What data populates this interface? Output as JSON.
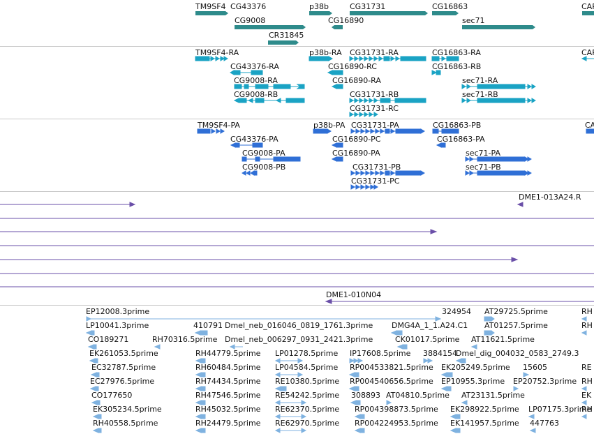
{
  "colors": {
    "gene": "#2e8b8b",
    "transcript": "#1aa3c4",
    "cds": "#2f6fd6",
    "bac": "#6a4fa8",
    "est": "#7fb2e0",
    "separator": "#c8c8c8"
  },
  "gene_track": {
    "genes": [
      "TM9SF4",
      "CG43376",
      "CG9008",
      "CR31845",
      "p38b",
      "CG16890",
      "CG31731",
      "CG16863",
      "sec71",
      "CAP"
    ]
  },
  "transcript_track": {
    "transcripts": [
      "TM9SF4-RA",
      "CG43376-RA",
      "CG9008-RA",
      "CG9008-RB",
      "p38b-RA",
      "CG16890-RC",
      "CG16890-RA",
      "CG31731-RA",
      "CG31731-RB",
      "CG31731-RC",
      "CG16863-RA",
      "CG16863-RB",
      "sec71-RA",
      "sec71-RB",
      "CAP"
    ]
  },
  "protein_track": {
    "proteins": [
      "TM9SF4-PA",
      "CG43376-PA",
      "CG9008-PA",
      "CG9008-PB",
      "p38b-PA",
      "CG16890-PC",
      "CG16890-PA",
      "CG31731-PA",
      "CG31731-PB",
      "CG31731-PC",
      "CG16863-PB",
      "CG16863-PA",
      "sec71-PA",
      "sec71-PB",
      "CA"
    ]
  },
  "bac_track": {
    "labels": [
      "DME1-013A24.R",
      "DME1-010N04"
    ]
  },
  "est_track": {
    "labels": [
      "EP12008.3prime",
      "324954",
      "AT29725.5prime",
      "RH",
      "LP10041.3prime",
      "410791",
      "Dmel_neb_016046_0819_1761.3prime",
      "DMG4A_1_1.A24.C1",
      "AT01257.5prime",
      "RH",
      "CO189271",
      "RH70316.5prime",
      "Dmel_neb_006297_0931_2421.3prime",
      "CK01017.5prime",
      "AT11621.5prime",
      "EK261053.5prime",
      "RH44779.5prime",
      "LP01278.5prime",
      "IP17608.5prime",
      "3884154",
      "Dmel_dig_004032_0583_2749.3",
      "EC32787.5prime",
      "RH60484.5prime",
      "LP04584.5prime",
      "RP004533821.5prime",
      "EK205249.5prime",
      "15605",
      "RE",
      "EC27976.5prime",
      "RH74434.5prime",
      "RE10380.5prime",
      "RP004540656.5prime",
      "EP10955.3prime",
      "EP20752.3prime",
      "RH",
      "CO177650",
      "RH47546.5prime",
      "RE54242.5prime",
      "308893",
      "AT04810.5prime",
      "AT23131.5prime",
      "EK",
      "EK305234.5prime",
      "RH45032.5prime",
      "RE62370.5prime",
      "RP004398873.5prime",
      "EK298922.5prime",
      "LP07175.3prime",
      "RH",
      "RH40558.5prime",
      "RH24479.5prime",
      "RE62970.5prime",
      "RP004224953.5prime",
      "EK141957.5prime",
      "447763"
    ]
  }
}
